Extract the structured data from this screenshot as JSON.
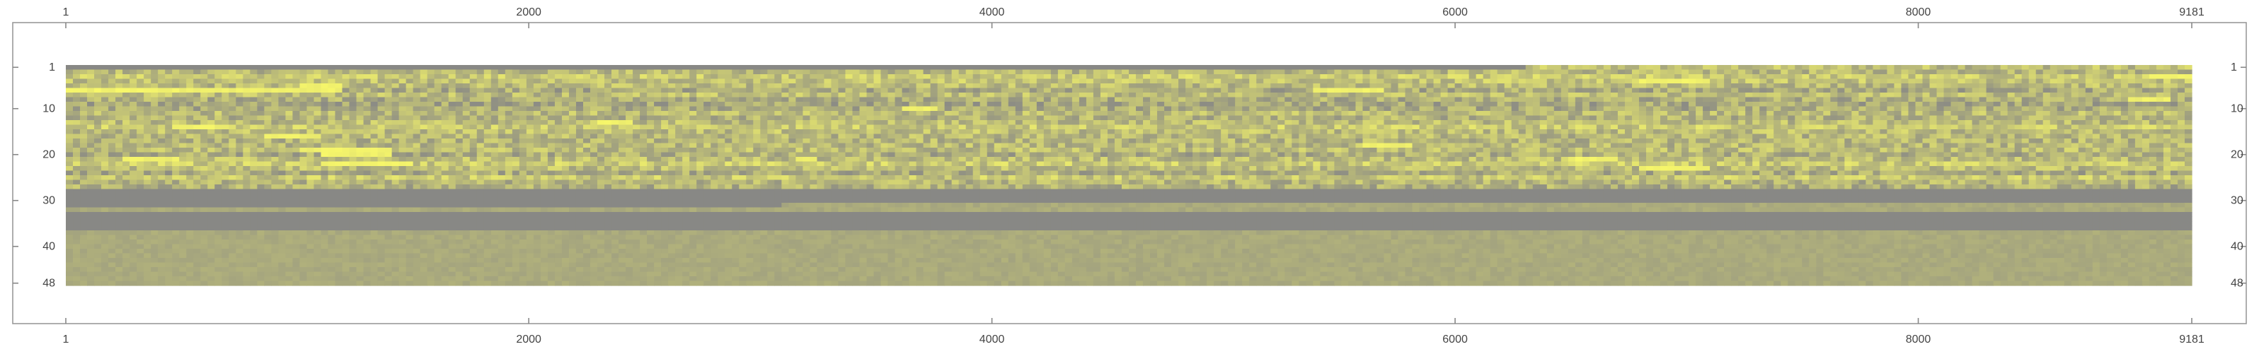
{
  "chart_data": {
    "type": "heatmap",
    "title": "",
    "xlabel": "",
    "ylabel": "",
    "x_range": [
      1,
      9181
    ],
    "y_range": [
      1,
      48
    ],
    "x_ticks": [
      {
        "value": 1,
        "label": "1"
      },
      {
        "value": 2000,
        "label": "2000"
      },
      {
        "value": 4000,
        "label": "4000"
      },
      {
        "value": 6000,
        "label": "6000"
      },
      {
        "value": 8000,
        "label": "8000"
      },
      {
        "value": 9181,
        "label": "9181"
      }
    ],
    "y_ticks": [
      {
        "value": 1,
        "label": "1"
      },
      {
        "value": 10,
        "label": "10"
      },
      {
        "value": 20,
        "label": "20"
      },
      {
        "value": 30,
        "label": "30"
      },
      {
        "value": 40,
        "label": "40"
      },
      {
        "value": 48,
        "label": "48"
      }
    ],
    "grid": false,
    "legend": "none",
    "colors": {
      "low": "#868686",
      "high": "#f7f76a"
    },
    "missing_row_segments": [
      {
        "row": 1,
        "from": 1,
        "to": 6300
      },
      {
        "row": 28,
        "from": 1,
        "to": 9181
      },
      {
        "row": 29,
        "from": 1,
        "to": 9181
      },
      {
        "row": 30,
        "from": 1,
        "to": 9181
      },
      {
        "row": 31,
        "from": 1,
        "to": 3100
      },
      {
        "row": 33,
        "from": 1,
        "to": 9181
      },
      {
        "row": 34,
        "from": 1,
        "to": 9181
      },
      {
        "row": 35,
        "from": 1,
        "to": 9181
      },
      {
        "row": 36,
        "from": 1,
        "to": 9181
      }
    ],
    "bright_streaks": [
      {
        "row": 6,
        "from": 1,
        "to": 1200
      },
      {
        "row": 5,
        "from": 1000,
        "to": 1200
      },
      {
        "row": 10,
        "from": 3600,
        "to": 3750
      },
      {
        "row": 14,
        "from": 450,
        "to": 700
      },
      {
        "row": 16,
        "from": 850,
        "to": 1100
      },
      {
        "row": 19,
        "from": 1000,
        "to": 1400
      },
      {
        "row": 20,
        "from": 1100,
        "to": 1400
      },
      {
        "row": 21,
        "from": 250,
        "to": 500
      },
      {
        "row": 22,
        "from": 1100,
        "to": 1500
      },
      {
        "row": 21,
        "from": 3150,
        "to": 3250
      },
      {
        "row": 21,
        "from": 6500,
        "to": 6700
      },
      {
        "row": 23,
        "from": 6800,
        "to": 7100
      },
      {
        "row": 18,
        "from": 5600,
        "to": 5800
      },
      {
        "row": 4,
        "from": 6800,
        "to": 7100
      },
      {
        "row": 8,
        "from": 8900,
        "to": 9100
      },
      {
        "row": 3,
        "from": 9000,
        "to": 9181
      },
      {
        "row": 6,
        "from": 5400,
        "to": 5700
      },
      {
        "row": 13,
        "from": 2300,
        "to": 2450
      }
    ]
  }
}
